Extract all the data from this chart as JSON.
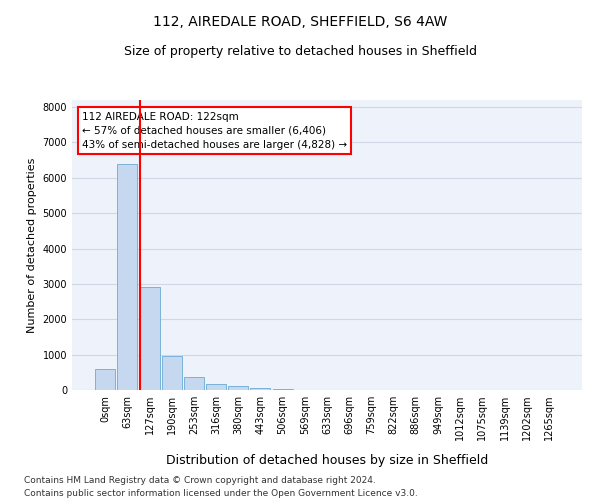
{
  "title1": "112, AIREDALE ROAD, SHEFFIELD, S6 4AW",
  "title2": "Size of property relative to detached houses in Sheffield",
  "xlabel": "Distribution of detached houses by size in Sheffield",
  "ylabel": "Number of detached properties",
  "annotation_line1": "112 AIREDALE ROAD: 122sqm",
  "annotation_line2": "← 57% of detached houses are smaller (6,406)",
  "annotation_line3": "43% of semi-detached houses are larger (4,828) →",
  "footer1": "Contains HM Land Registry data © Crown copyright and database right 2024.",
  "footer2": "Contains public sector information licensed under the Open Government Licence v3.0.",
  "bar_labels": [
    "0sqm",
    "63sqm",
    "127sqm",
    "190sqm",
    "253sqm",
    "316sqm",
    "380sqm",
    "443sqm",
    "506sqm",
    "569sqm",
    "633sqm",
    "696sqm",
    "759sqm",
    "822sqm",
    "886sqm",
    "949sqm",
    "1012sqm",
    "1075sqm",
    "1139sqm",
    "1202sqm",
    "1265sqm"
  ],
  "bar_values": [
    580,
    6400,
    2900,
    960,
    380,
    160,
    120,
    60,
    40,
    0,
    0,
    0,
    0,
    0,
    0,
    0,
    0,
    0,
    0,
    0,
    0
  ],
  "bar_color": "#c5d8f0",
  "bar_edge_color": "#6aaad4",
  "vline_color": "red",
  "vline_pos": 1.55,
  "ylim": [
    0,
    8200
  ],
  "yticks": [
    0,
    1000,
    2000,
    3000,
    4000,
    5000,
    6000,
    7000,
    8000
  ],
  "grid_color": "#d0d8e8",
  "bg_color": "#eef2fa",
  "annotation_box_facecolor": "white",
  "annotation_box_edgecolor": "red",
  "title1_fontsize": 10,
  "title2_fontsize": 9,
  "ylabel_fontsize": 8,
  "xlabel_fontsize": 9,
  "tick_fontsize": 7,
  "footer_fontsize": 6.5
}
